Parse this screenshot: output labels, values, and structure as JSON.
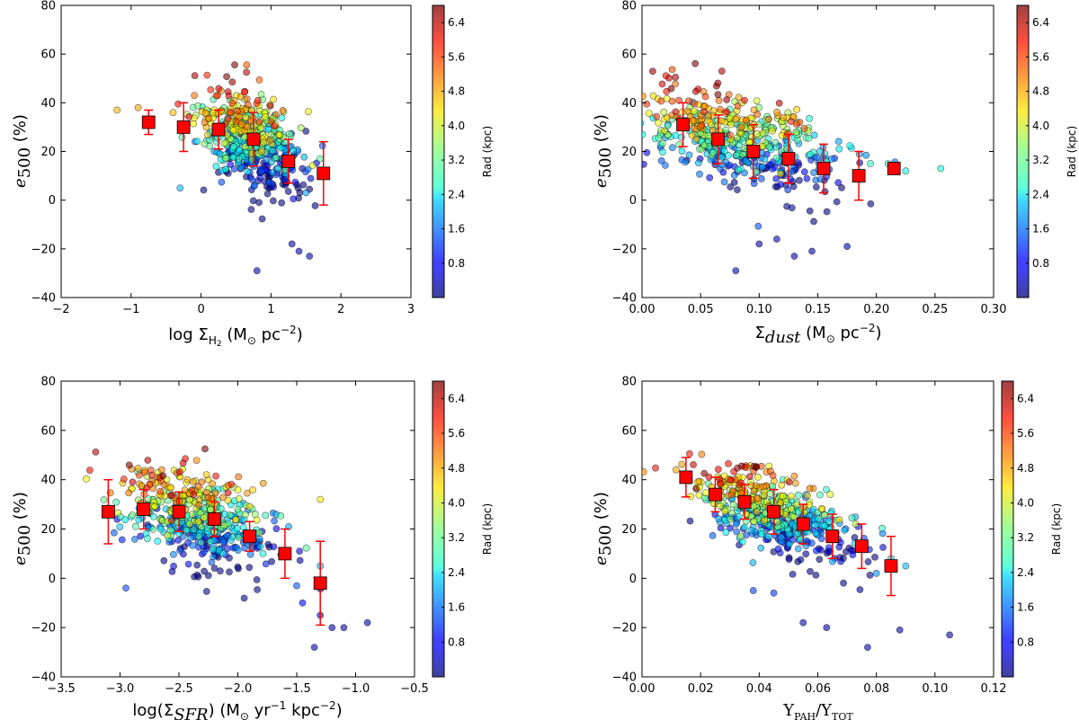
{
  "chart_data": [
    {
      "type": "scatter",
      "xlabel_parts": [
        "log Σ",
        "H",
        "2",
        " (M",
        "⊙",
        " pc",
        "−2",
        ")"
      ],
      "ylabel_parts": [
        "e",
        "500",
        " (%)"
      ],
      "xlim": [
        -2,
        3
      ],
      "ylim": [
        -40,
        80
      ],
      "xticks": [
        -2,
        -1,
        0,
        1,
        2,
        3
      ],
      "yticks": [
        -40,
        -20,
        0,
        20,
        40,
        60,
        80
      ],
      "cloud": {
        "cx": 0.7,
        "cy": 25,
        "sx": 0.38,
        "sy": 10,
        "n": 520,
        "slope": -12
      },
      "outliers": [
        [
          -1.2,
          37
        ],
        [
          -0.3,
          5
        ],
        [
          1.3,
          -18
        ],
        [
          1.4,
          -21
        ],
        [
          0.8,
          -29
        ],
        [
          1.55,
          -23
        ],
        [
          -0.9,
          38
        ],
        [
          -0.4,
          36
        ],
        [
          1.5,
          3
        ],
        [
          1.7,
          17
        ]
      ],
      "binned": [
        {
          "x": -0.75,
          "y": 32,
          "err": 5
        },
        {
          "x": -0.25,
          "y": 30,
          "err": 10
        },
        {
          "x": 0.25,
          "y": 29,
          "err": 8
        },
        {
          "x": 0.75,
          "y": 25,
          "err": 11
        },
        {
          "x": 1.25,
          "y": 16,
          "err": 9
        },
        {
          "x": 1.75,
          "y": 11,
          "err": 13
        }
      ],
      "colorbar_label": "Rad (kpc)",
      "colorbar_ticks": [
        "0.8",
        "1.6",
        "2.4",
        "3.2",
        "4.0",
        "4.8",
        "5.6",
        "6.4"
      ]
    },
    {
      "type": "scatter",
      "xlabel_parts": [
        "Σ",
        "dust",
        " (M",
        "⊙",
        " pc",
        "−2",
        ")"
      ],
      "ylabel_parts": [
        "e",
        "500",
        " (%)"
      ],
      "xlim": [
        0,
        0.3
      ],
      "ylim": [
        -40,
        80
      ],
      "xticks": [
        0.0,
        0.05,
        0.1,
        0.15,
        0.2,
        0.25,
        0.3
      ],
      "xtick_labels": [
        "0.00",
        "0.05",
        "0.10",
        "0.15",
        "0.20",
        "0.25",
        "0.30"
      ],
      "yticks": [
        -40,
        -20,
        0,
        20,
        40,
        60,
        80
      ],
      "cloud": {
        "cx": 0.085,
        "cy": 24,
        "sx": 0.04,
        "sy": 9,
        "n": 520,
        "slope": -120
      },
      "outliers": [
        [
          0.08,
          -29
        ],
        [
          0.1,
          -18
        ],
        [
          0.115,
          -16
        ],
        [
          0.13,
          -23
        ],
        [
          0.145,
          -21
        ],
        [
          0.175,
          -19
        ],
        [
          0.255,
          13
        ],
        [
          0.225,
          12
        ],
        [
          0.21,
          15
        ],
        [
          0.195,
          15
        ]
      ],
      "binned": [
        {
          "x": 0.035,
          "y": 31,
          "err": 9
        },
        {
          "x": 0.065,
          "y": 25,
          "err": 10
        },
        {
          "x": 0.095,
          "y": 20,
          "err": 11
        },
        {
          "x": 0.125,
          "y": 17,
          "err": 10
        },
        {
          "x": 0.155,
          "y": 13,
          "err": 10
        },
        {
          "x": 0.185,
          "y": 10,
          "err": 10
        },
        {
          "x": 0.215,
          "y": 13,
          "err": 2
        }
      ],
      "colorbar_label": "Rad (kpc)",
      "colorbar_ticks": [
        "0.8",
        "1.6",
        "2.4",
        "3.2",
        "4.0",
        "4.8",
        "5.6",
        "6.4"
      ]
    },
    {
      "type": "scatter",
      "xlabel_parts": [
        "log(Σ",
        "SFR",
        ") (M",
        "⊙",
        " yr",
        "−1",
        " kpc",
        "−2",
        ")"
      ],
      "ylabel_parts": [
        "e",
        "500",
        " (%)"
      ],
      "xlim": [
        -3.5,
        -0.5
      ],
      "ylim": [
        -40,
        80
      ],
      "xticks": [
        -3.5,
        -3.0,
        -2.5,
        -2.0,
        -1.5,
        -1.0,
        -0.5
      ],
      "xtick_labels": [
        "−3.5",
        "−3.0",
        "−2.5",
        "−2.0",
        "−1.5",
        "−1.0",
        "−0.5"
      ],
      "yticks": [
        -40,
        -20,
        0,
        20,
        40,
        60,
        80
      ],
      "cloud": {
        "cx": -2.35,
        "cy": 25,
        "sx": 0.32,
        "sy": 9,
        "n": 520,
        "slope": -15
      },
      "outliers": [
        [
          -1.3,
          -15
        ],
        [
          -1.2,
          -20
        ],
        [
          -1.1,
          -20
        ],
        [
          -0.9,
          -18
        ],
        [
          -1.35,
          -28
        ],
        [
          -1.3,
          32
        ],
        [
          -2.95,
          -4
        ],
        [
          -1.3,
          5
        ],
        [
          -1.5,
          -3
        ],
        [
          -1.45,
          -10
        ]
      ],
      "binned": [
        {
          "x": -3.1,
          "y": 27,
          "err": 13
        },
        {
          "x": -2.8,
          "y": 28,
          "err": 8
        },
        {
          "x": -2.5,
          "y": 27,
          "err": 8
        },
        {
          "x": -2.2,
          "y": 24,
          "err": 7
        },
        {
          "x": -1.9,
          "y": 17,
          "err": 6
        },
        {
          "x": -1.6,
          "y": 10,
          "err": 10
        },
        {
          "x": -1.3,
          "y": -2,
          "err": 17
        }
      ],
      "colorbar_label": "Rad (kpc)",
      "colorbar_ticks": [
        "0.8",
        "1.6",
        "2.4",
        "3.2",
        "4.0",
        "4.8",
        "5.6",
        "6.4"
      ]
    },
    {
      "type": "scatter",
      "xlabel_parts": [
        "Y",
        "PAH",
        "/Y",
        "TOT"
      ],
      "ylabel_parts": [
        "e",
        "500",
        " (%)"
      ],
      "xlim": [
        0,
        0.12
      ],
      "ylim": [
        -40,
        80
      ],
      "xticks": [
        0.0,
        0.02,
        0.04,
        0.06,
        0.08,
        0.1,
        0.12
      ],
      "xtick_labels": [
        "0.00",
        "0.02",
        "0.04",
        "0.06",
        "0.08",
        "0.10",
        "0.12"
      ],
      "yticks": [
        -40,
        -20,
        0,
        20,
        40,
        60,
        80
      ],
      "cloud": {
        "cx": 0.045,
        "cy": 26,
        "sx": 0.014,
        "sy": 8,
        "n": 520,
        "slope": -450
      },
      "outliers": [
        [
          0.055,
          -18
        ],
        [
          0.063,
          -20
        ],
        [
          0.077,
          -28
        ],
        [
          0.088,
          -21
        ],
        [
          0.105,
          -23
        ],
        [
          0.085,
          8
        ],
        [
          0.045,
          -6
        ],
        [
          0.038,
          -5
        ],
        [
          0.08,
          2
        ],
        [
          0.09,
          5
        ]
      ],
      "binned": [
        {
          "x": 0.015,
          "y": 41,
          "err": 8
        },
        {
          "x": 0.025,
          "y": 34,
          "err": 7
        },
        {
          "x": 0.035,
          "y": 31,
          "err": 7
        },
        {
          "x": 0.045,
          "y": 27,
          "err": 9
        },
        {
          "x": 0.055,
          "y": 22,
          "err": 8
        },
        {
          "x": 0.065,
          "y": 17,
          "err": 9
        },
        {
          "x": 0.075,
          "y": 13,
          "err": 9
        },
        {
          "x": 0.085,
          "y": 5,
          "err": 12
        }
      ],
      "colorbar_label": "Rad (kpc)",
      "colorbar_ticks": [
        "0.8",
        "1.6",
        "2.4",
        "3.2",
        "4.0",
        "4.8",
        "5.6",
        "6.4"
      ]
    }
  ],
  "colors": {
    "binned_marker": "#ff0000",
    "errorbar": "#ff0000"
  },
  "colorbar_range": [
    0.0,
    6.8
  ]
}
